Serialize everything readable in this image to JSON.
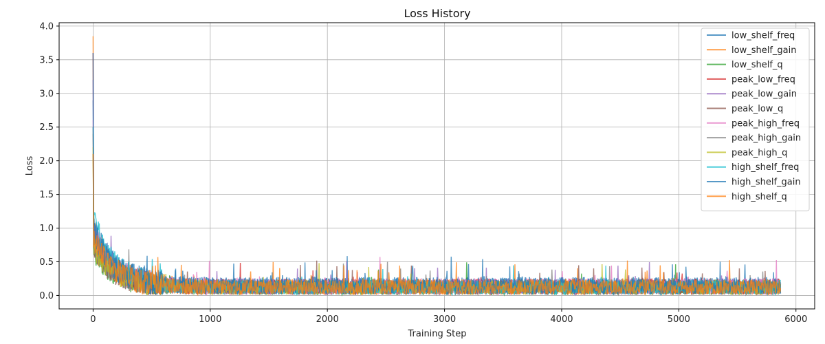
{
  "chart_data": {
    "type": "line",
    "title": "Loss History",
    "xlabel": "Training Step",
    "ylabel": "Loss",
    "xlim": [
      -290,
      6160
    ],
    "ylim": [
      -0.2,
      4.05
    ],
    "xticks": [
      "0",
      "1000",
      "2000",
      "3000",
      "4000",
      "5000",
      "6000"
    ],
    "yticks": [
      "0.0",
      "0.5",
      "1.0",
      "1.5",
      "2.0",
      "2.5",
      "3.0",
      "3.5",
      "4.0"
    ],
    "grid": true,
    "legend_position": "top-right",
    "n_steps": 5870,
    "series": [
      {
        "name": "low_shelf_freq",
        "color": "#1f77b4",
        "start": 2.9,
        "peak": 0.95,
        "floor": 0.08,
        "spread": 0.25
      },
      {
        "name": "low_shelf_gain",
        "color": "#ff7f0e",
        "start": 3.85,
        "peak": 0.9,
        "floor": 0.06,
        "spread": 0.24
      },
      {
        "name": "low_shelf_q",
        "color": "#2ca02c",
        "start": 2.1,
        "peak": 0.6,
        "floor": 0.05,
        "spread": 0.2
      },
      {
        "name": "peak_low_freq",
        "color": "#d62728",
        "start": 3.6,
        "peak": 0.8,
        "floor": 0.07,
        "spread": 0.23
      },
      {
        "name": "peak_low_gain",
        "color": "#9467bd",
        "start": 3.2,
        "peak": 0.8,
        "floor": 0.07,
        "spread": 0.23
      },
      {
        "name": "peak_low_q",
        "color": "#8c564b",
        "start": 2.5,
        "peak": 0.6,
        "floor": 0.05,
        "spread": 0.2
      },
      {
        "name": "peak_high_freq",
        "color": "#e377c2",
        "start": 2.6,
        "peak": 0.9,
        "floor": 0.07,
        "spread": 0.25
      },
      {
        "name": "peak_high_gain",
        "color": "#7f7f7f",
        "start": 2.4,
        "peak": 0.7,
        "floor": 0.06,
        "spread": 0.22
      },
      {
        "name": "peak_high_q",
        "color": "#bcbd22",
        "start": 2.2,
        "peak": 0.65,
        "floor": 0.06,
        "spread": 0.22
      },
      {
        "name": "high_shelf_freq",
        "color": "#17becf",
        "start": 2.5,
        "peak": 1.1,
        "floor": 0.06,
        "spread": 0.22
      },
      {
        "name": "high_shelf_gain",
        "color": "#1f77b4",
        "start": 3.6,
        "peak": 0.9,
        "floor": 0.08,
        "spread": 0.26
      },
      {
        "name": "high_shelf_q",
        "color": "#ff7f0e",
        "start": 2.1,
        "peak": 0.8,
        "floor": 0.06,
        "spread": 0.23
      }
    ]
  }
}
